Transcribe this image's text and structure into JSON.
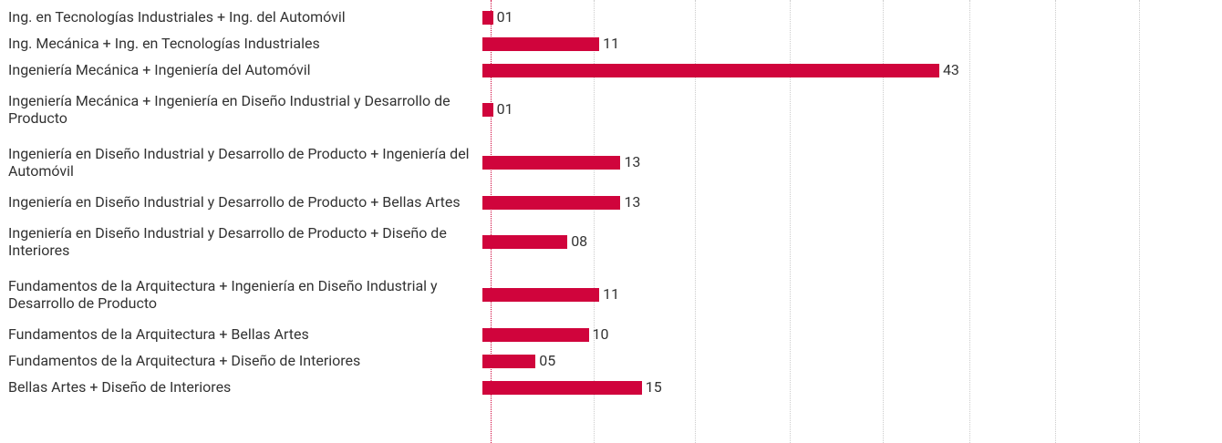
{
  "chart_data": {
    "type": "bar",
    "orientation": "horizontal",
    "categories": [
      "Ing. en Tecnologías Industriales + Ing. del Automóvil",
      "Ing. Mecánica + Ing. en Tecnologías Industriales",
      "Ingeniería Mecánica + Ingeniería del Automóvil",
      "Ingeniería Mecánica + Ingeniería en Diseño Industrial y Desarrollo de Producto",
      "Ingeniería en Diseño Industrial y Desarrollo de Producto + Ingeniería del Automóvil",
      "Ingeniería en Diseño Industrial y Desarrollo de Producto + Bellas Artes",
      "Ingeniería en Diseño Industrial y Desarrollo de Producto + Diseño de Interiores",
      "Fundamentos de la Arquitectura + Ingeniería en Diseño Industrial y Desarrollo de Producto",
      "Fundamentos de la Arquitectura + Bellas Artes",
      "Fundamentos de la Arquitectura + Diseño de Interiores",
      "Bellas Artes + Diseño de Interiores"
    ],
    "values": [
      1,
      11,
      43,
      1,
      13,
      13,
      8,
      11,
      10,
      5,
      15
    ],
    "value_labels": [
      "01",
      "11",
      "43",
      "01",
      "13",
      "13",
      "08",
      "11",
      "10",
      "05",
      "15"
    ],
    "color": "#d0043c",
    "xlim": [
      0,
      60
    ]
  }
}
